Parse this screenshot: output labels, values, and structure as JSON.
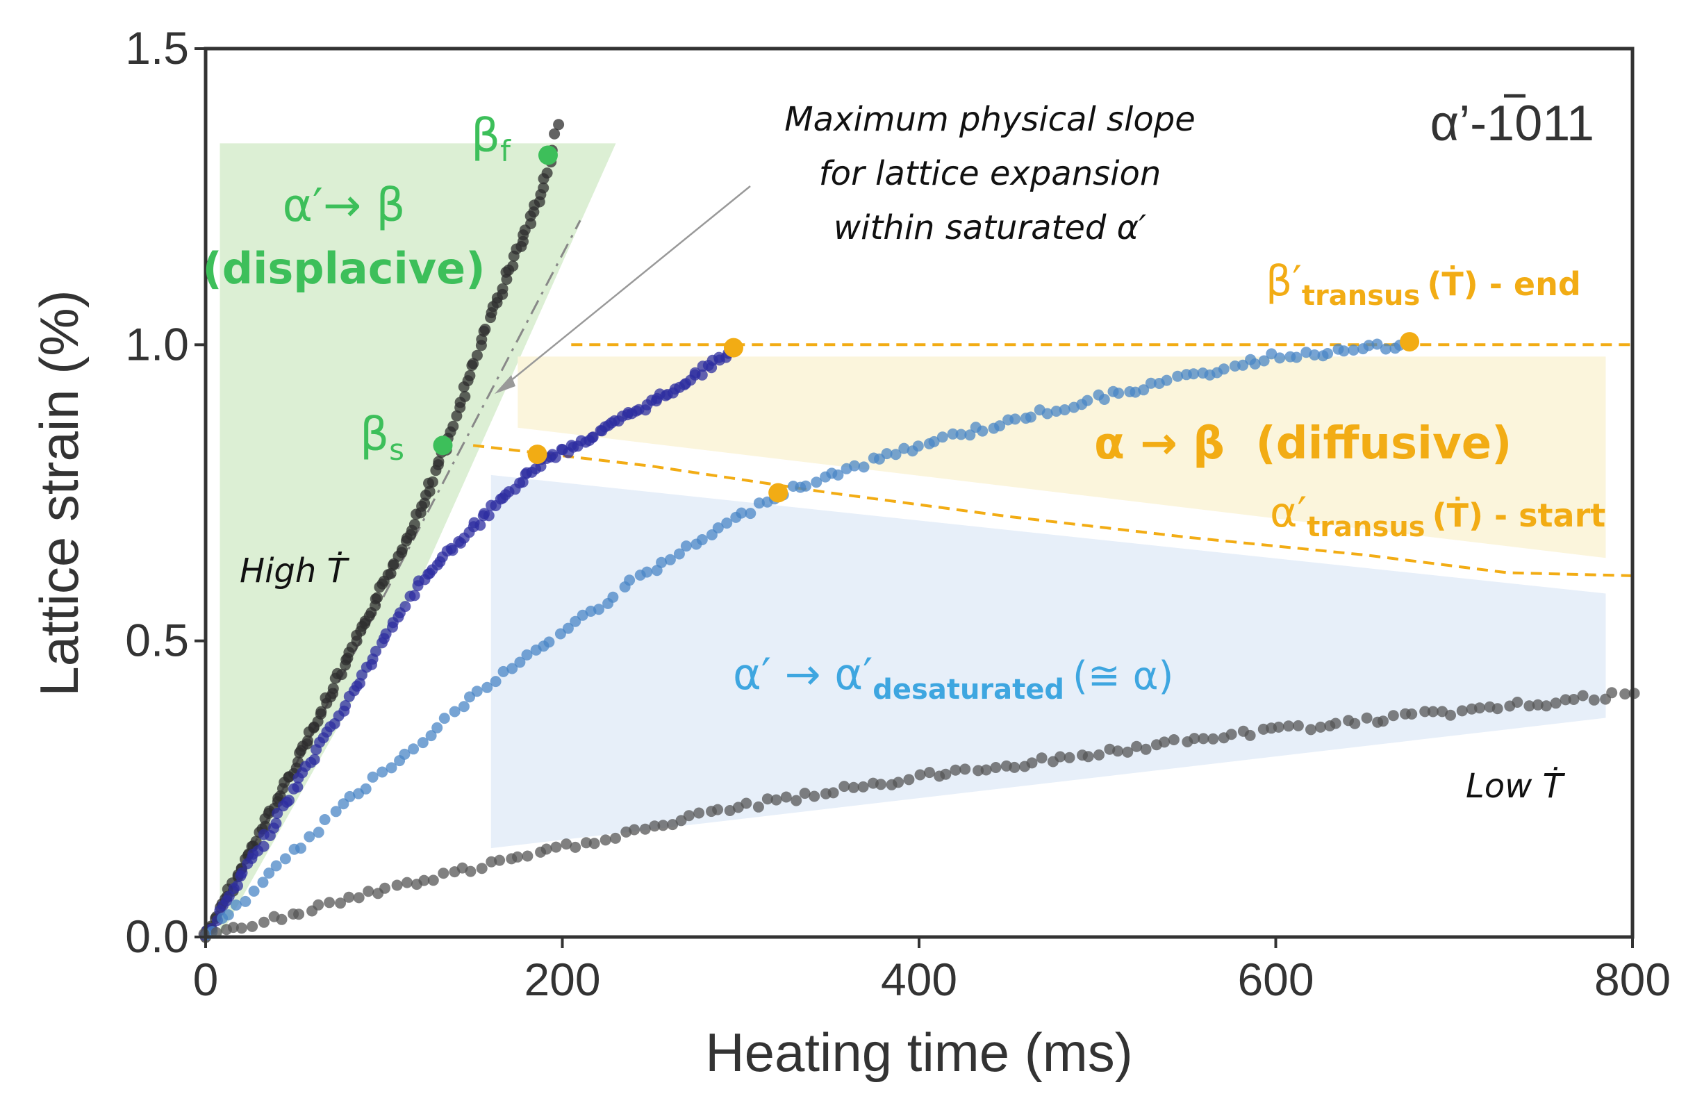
{
  "chart_data": {
    "type": "scatter",
    "title": "α’-1011",
    "title_overline": "1",
    "xlabel": "Heating time (ms)",
    "ylabel": "Lattice strain (%)",
    "xlim": [
      0,
      800
    ],
    "ylim": [
      0,
      1.5
    ],
    "xticks": [
      "0",
      "200",
      "400",
      "600",
      "800"
    ],
    "yticks": [
      "0.0",
      "0.5",
      "1.0",
      "1.5"
    ],
    "xtick_values": [
      0,
      200,
      400,
      600,
      800
    ],
    "ytick_values": [
      0,
      0.5,
      1.0,
      1.5
    ],
    "grid": false,
    "series": [
      {
        "name": "High Ṫ",
        "color": "#2e2e2e",
        "x": [
          0,
          40,
          80,
          120,
          135,
          160,
          190,
          197
        ],
        "y": [
          0,
          0.23,
          0.47,
          0.72,
          0.83,
          1.05,
          1.27,
          1.37
        ]
      },
      {
        "name": "series-2",
        "color": "#2e2ea0",
        "x": [
          0,
          60,
          120,
          187,
          220,
          260,
          295
        ],
        "y": [
          0,
          0.3,
          0.6,
          0.8,
          0.85,
          0.92,
          0.99
        ]
      },
      {
        "name": "series-3",
        "color": "#4a86c6",
        "x": [
          0,
          80,
          160,
          240,
          322,
          400,
          500,
          600,
          675
        ],
        "y": [
          0,
          0.23,
          0.43,
          0.6,
          0.75,
          0.83,
          0.91,
          0.98,
          1.0
        ]
      },
      {
        "name": "Low Ṫ",
        "color": "#555555",
        "x": [
          0,
          100,
          200,
          300,
          400,
          500,
          600,
          700,
          800
        ],
        "y": [
          0,
          0.08,
          0.15,
          0.22,
          0.27,
          0.31,
          0.35,
          0.38,
          0.41
        ]
      }
    ],
    "curves": [
      {
        "name": "β′transus (Ṫ) - end",
        "color": "#f2ac14",
        "style": "dashed",
        "x": [
          205,
          800
        ],
        "y": [
          1.0,
          1.0
        ]
      },
      {
        "name": "α′transus (Ṫ) - start",
        "color": "#f2ac14",
        "style": "dashed",
        "x": [
          150,
          250,
          350,
          450,
          550,
          650,
          730,
          800
        ],
        "y": [
          0.83,
          0.795,
          0.75,
          0.71,
          0.675,
          0.645,
          0.615,
          0.61
        ]
      },
      {
        "name": "Maximum physical slope",
        "color": "#888888",
        "style": "dashdot",
        "x": [
          0,
          210
        ],
        "y": [
          0,
          1.21
        ]
      }
    ],
    "regions": [
      {
        "name": "α′→ β (displacive)",
        "color": "#dcefd4",
        "x": [
          8,
          230,
          120,
          8
        ],
        "y": [
          1.34,
          1.34,
          0.6,
          0
        ]
      },
      {
        "name": "α → β (diffusive)",
        "color": "#fbf5dc",
        "x": [
          175,
          785,
          785,
          175
        ],
        "y": [
          0.98,
          0.98,
          0.64,
          0.86
        ]
      },
      {
        "name": "α′ → α′desaturated (≅ α)",
        "color": "#e7eff9",
        "x": [
          160,
          785,
          785,
          160
        ],
        "y": [
          0.78,
          0.58,
          0.37,
          0.15
        ]
      }
    ],
    "points": [
      {
        "name": "βs",
        "color": "#3dbf5a",
        "x": 133,
        "y": 0.83
      },
      {
        "name": "βf",
        "color": "#3dbf5a",
        "x": 192,
        "y": 1.32
      },
      {
        "name": "p-1",
        "color": "#f2ac14",
        "x": 296,
        "y": 0.995
      },
      {
        "name": "p-2",
        "color": "#f2ac14",
        "x": 675,
        "y": 1.005
      },
      {
        "name": "p-3",
        "color": "#f2ac14",
        "x": 186,
        "y": 0.815
      },
      {
        "name": "p-4",
        "color": "#f2ac14",
        "x": 321,
        "y": 0.75
      }
    ],
    "annotations": {
      "displacive_line1": "α′→ β",
      "displacive_line2": "(displacive)",
      "beta_f": "β",
      "beta_f_sub": "f",
      "beta_s": "β",
      "beta_s_sub": "s",
      "max_slope_line1": "Maximum physical slope",
      "max_slope_line2": "for lattice expansion",
      "max_slope_line3": "within saturated α′",
      "beta_transus_main": "β′",
      "beta_transus_sub": "transus",
      "beta_transus_tail": "(Ṫ) - end",
      "diffusive": "α → β  (diffusive)",
      "alpha_transus_main": "α′",
      "alpha_transus_sub": "transus",
      "alpha_transus_tail": "(Ṫ) - start",
      "desat_main": "α′ → α′",
      "desat_sub": "desaturated",
      "desat_tail": "(≅ α)",
      "high_t": "High Ṫ",
      "low_t": "Low Ṫ"
    }
  }
}
